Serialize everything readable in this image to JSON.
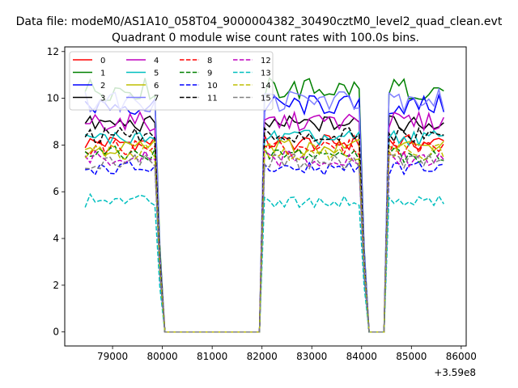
{
  "figure": {
    "suptitle": "Data file: modeM0/AS1A10_058T04_9000004382_30490cztM0_level2_quad_clean.evt",
    "offset_label": "+3.59e8"
  },
  "chart_data": {
    "type": "line",
    "title": "Quadrant 0 module wise count rates with 100.0s bins.",
    "xlabel": "",
    "ylabel": "",
    "x_offset": 359000000,
    "xlim": [
      78040,
      86100
    ],
    "ylim": [
      -0.6,
      12.2
    ],
    "xticks": [
      79000,
      80000,
      81000,
      82000,
      83000,
      84000,
      85000,
      86000
    ],
    "xtick_labels": [
      "79000",
      "80000",
      "81000",
      "82000",
      "83000",
      "84000",
      "85000",
      "86000"
    ],
    "yticks": [
      0,
      2,
      4,
      6,
      8,
      10,
      12
    ],
    "ytick_labels": [
      "0",
      "2",
      "4",
      "6",
      "8",
      "10",
      "12"
    ],
    "grid": false,
    "legend": {
      "placement": "top-left",
      "columns": 4
    },
    "segments": [
      {
        "x_start": 78450,
        "step": 100,
        "n": 16
      },
      {
        "x_start": 82050,
        "step": 100,
        "n": 21
      },
      {
        "x_start": 84550,
        "step": 100,
        "n": 12
      }
    ],
    "series": [
      {
        "name": "0",
        "color": "#ff0000",
        "dash": "solid",
        "level": 8.1,
        "variation": 0.35
      },
      {
        "name": "1",
        "color": "#008000",
        "dash": "solid",
        "level": 10.4,
        "variation": 0.5
      },
      {
        "name": "2",
        "color": "#0000ff",
        "dash": "solid",
        "level": 9.7,
        "variation": 0.45
      },
      {
        "name": "3",
        "color": "#000000",
        "dash": "solid",
        "level": 8.9,
        "variation": 0.35
      },
      {
        "name": "4",
        "color": "#bf00bf",
        "dash": "solid",
        "level": 9.0,
        "variation": 0.4
      },
      {
        "name": "5",
        "color": "#00bfbf",
        "dash": "solid",
        "level": 8.3,
        "variation": 0.35
      },
      {
        "name": "6",
        "color": "#bfbf00",
        "dash": "solid",
        "level": 7.9,
        "variation": 0.35
      },
      {
        "name": "7",
        "color": "#8080ff",
        "dash": "solid",
        "level": 9.9,
        "variation": 0.5
      },
      {
        "name": "8",
        "color": "#ff0000",
        "dash": "dashed",
        "level": 7.9,
        "variation": 0.35
      },
      {
        "name": "9",
        "color": "#008000",
        "dash": "dashed",
        "level": 7.6,
        "variation": 0.35
      },
      {
        "name": "10",
        "color": "#0000ff",
        "dash": "dashed",
        "level": 7.0,
        "variation": 0.3
      },
      {
        "name": "11",
        "color": "#000000",
        "dash": "dashed",
        "level": 8.4,
        "variation": 0.35
      },
      {
        "name": "12",
        "color": "#bf00bf",
        "dash": "dashed",
        "level": 7.4,
        "variation": 0.35
      },
      {
        "name": "13",
        "color": "#00bfbf",
        "dash": "dashed",
        "level": 5.6,
        "variation": 0.3
      },
      {
        "name": "14",
        "color": "#bfbf00",
        "dash": "dashed",
        "level": 7.7,
        "variation": 0.35
      },
      {
        "name": "15",
        "color": "#808080",
        "dash": "dashed",
        "level": 7.3,
        "variation": 0.35
      }
    ]
  }
}
